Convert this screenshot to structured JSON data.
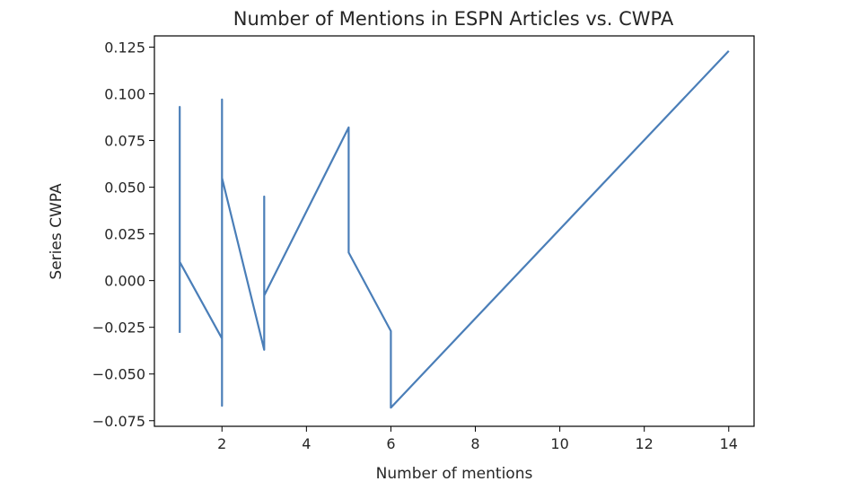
{
  "chart_data": {
    "type": "line",
    "title": "Number of Mentions in ESPN Articles vs. CWPA",
    "xlabel": "Number of mentions",
    "ylabel": "Series CWPA",
    "xlim": [
      0.4,
      14.6
    ],
    "ylim": [
      -0.078,
      0.131
    ],
    "xticks": [
      2,
      4,
      6,
      8,
      10,
      12,
      14
    ],
    "xtick_labels": [
      "2",
      "4",
      "6",
      "8",
      "10",
      "12",
      "14"
    ],
    "yticks": [
      -0.075,
      -0.05,
      -0.025,
      0.0,
      0.025,
      0.05,
      0.075,
      0.1,
      0.125
    ],
    "ytick_labels": [
      "−0.075",
      "−0.050",
      "−0.025",
      "0.000",
      "0.025",
      "0.050",
      "0.075",
      "0.100",
      "0.125"
    ],
    "grid": false,
    "series": [
      {
        "color": "#4a7eb8",
        "x": [
          1,
          1,
          1,
          1,
          1,
          1,
          1,
          1,
          2,
          2,
          2,
          2,
          2,
          3,
          3,
          3,
          3,
          5,
          5,
          6,
          6,
          14
        ],
        "y": [
          -0.028,
          0.093,
          -0.008,
          0.082,
          0.0,
          0.062,
          0.01,
          0.01,
          -0.031,
          -0.067,
          0.097,
          0.055,
          0.055,
          -0.037,
          0.045,
          -0.008,
          -0.008,
          0.082,
          0.015,
          -0.027,
          -0.068,
          0.123
        ]
      }
    ]
  }
}
